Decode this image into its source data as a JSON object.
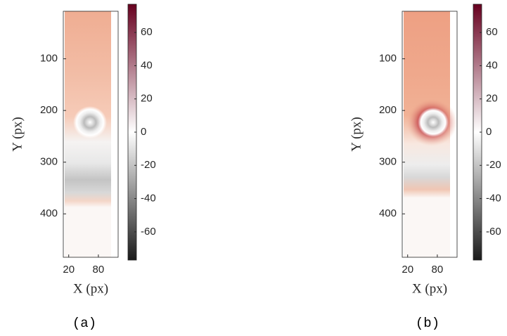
{
  "chart_data": [
    {
      "type": "heatmap",
      "caption": "(a)",
      "xlabel": "X (px)",
      "ylabel": "Y (px)",
      "xlim": [
        9,
        120
      ],
      "xticks": [
        20,
        80
      ],
      "ylim": [
        8,
        484
      ],
      "yticks": [
        100,
        200,
        300,
        400
      ],
      "clim": [
        -77,
        77
      ],
      "cticks": [
        -60,
        -40,
        -20,
        0,
        20,
        40,
        60
      ],
      "colormap": [
        "#1a1a1a",
        "#ffffff",
        "#67001f"
      ]
    },
    {
      "type": "heatmap",
      "caption": "(b)",
      "xlabel": "X (px)",
      "ylabel": "Y (px)",
      "xlim": [
        9,
        120
      ],
      "xticks": [
        20,
        80
      ],
      "ylim": [
        8,
        484
      ],
      "yticks": [
        100,
        200,
        300,
        400
      ],
      "clim": [
        -77,
        77
      ],
      "cticks": [
        -60,
        -40,
        -20,
        0,
        20,
        40,
        60
      ],
      "colormap": [
        "#1a1a1a",
        "#ffffff",
        "#67001f"
      ]
    }
  ]
}
